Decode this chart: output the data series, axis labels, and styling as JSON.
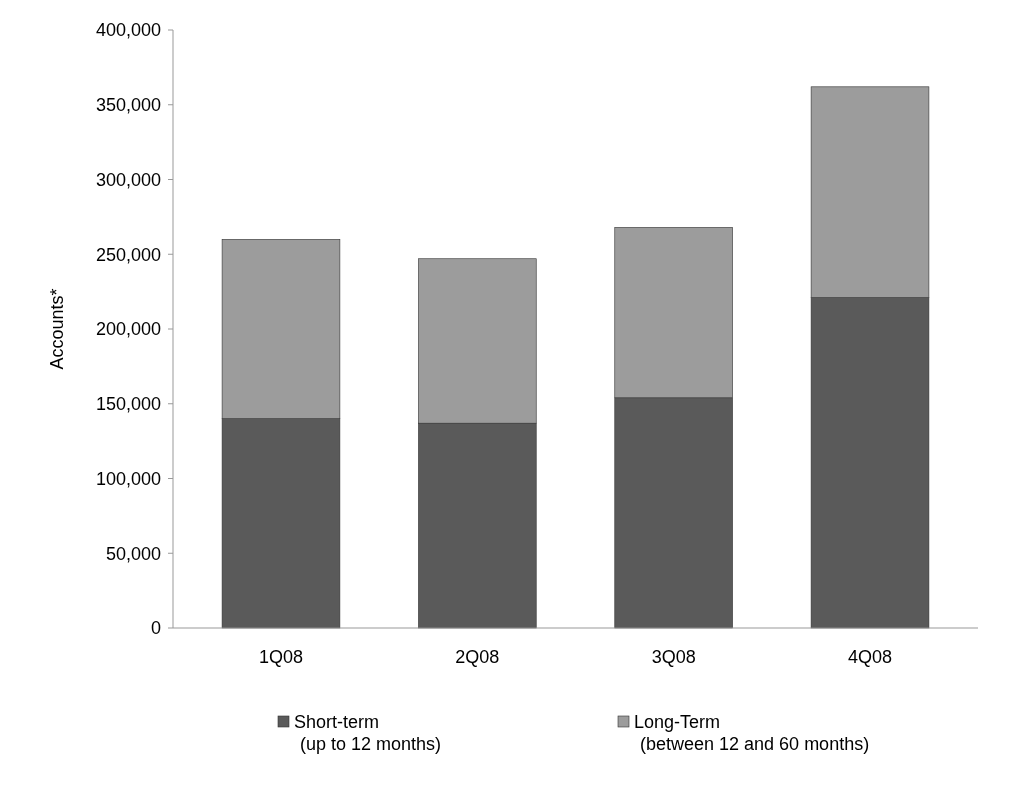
{
  "chart_data": {
    "type": "bar",
    "stacked": true,
    "ylabel": "Accounts*",
    "categories": [
      "1Q08",
      "2Q08",
      "3Q08",
      "4Q08"
    ],
    "series": [
      {
        "name": "Short-term\n(up to 12 months)",
        "color": "#5a5a5a",
        "values": [
          140000,
          137000,
          154000,
          221000
        ]
      },
      {
        "name": "Long-Term\n(between 12 and 60 months)",
        "color": "#9c9c9c",
        "values": [
          120000,
          110000,
          114000,
          141000
        ]
      }
    ],
    "ylim": [
      0,
      400000
    ],
    "yticks": [
      {
        "value": 0,
        "label": "0"
      },
      {
        "value": 50000,
        "label": "50,000"
      },
      {
        "value": 100000,
        "label": "100,000"
      },
      {
        "value": 150000,
        "label": "150,000"
      },
      {
        "value": 200000,
        "label": "200,000"
      },
      {
        "value": 250000,
        "label": "250,000"
      },
      {
        "value": 300000,
        "label": "300,000"
      },
      {
        "value": 350000,
        "label": "350,000"
      },
      {
        "value": 400000,
        "label": "400,000"
      }
    ],
    "grid": false,
    "legend": "bottom"
  }
}
